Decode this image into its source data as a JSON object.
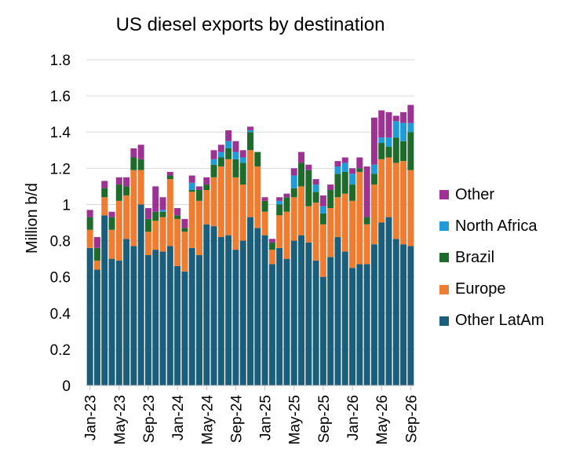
{
  "chart_data": {
    "type": "bar",
    "stacked": true,
    "title": "US diesel exports by destination",
    "xlabel": "",
    "ylabel": "Million b/d",
    "ylim": [
      0,
      1.8
    ],
    "yticks": [
      "0",
      "0.2",
      "0.4",
      "0.6",
      "0.8",
      "1",
      "1.2",
      "1.4",
      "1.6",
      "1.8"
    ],
    "xtick_labels": [
      "Jan-23",
      "May-23",
      "Sep-23",
      "Jan-24",
      "May-24",
      "Sep-24",
      "Jan-25",
      "May-25",
      "Sep-25",
      "Jan-26",
      "May-26",
      "Sep-26"
    ],
    "xtick_every": 4,
    "grid": "horizontal",
    "legend_position": "right",
    "categories": [
      "Jan-23",
      "Feb-23",
      "Mar-23",
      "Apr-23",
      "May-23",
      "Jun-23",
      "Jul-23",
      "Aug-23",
      "Sep-23",
      "Oct-23",
      "Nov-23",
      "Dec-23",
      "Jan-24",
      "Feb-24",
      "Mar-24",
      "Apr-24",
      "May-24",
      "Jun-24",
      "Jul-24",
      "Aug-24",
      "Sep-24",
      "Oct-24",
      "Nov-24",
      "Dec-24",
      "Jan-25",
      "Feb-25",
      "Mar-25",
      "Apr-25",
      "May-25",
      "Jun-25",
      "Jul-25",
      "Aug-25",
      "Sep-25",
      "Oct-25",
      "Nov-25",
      "Dec-25",
      "Jan-26",
      "Feb-26",
      "Mar-26",
      "Apr-26",
      "May-26",
      "Jun-26",
      "Jul-26",
      "Aug-26",
      "Sep-26"
    ],
    "series": [
      {
        "name": "Other LatAm",
        "color": "#1b5e7b",
        "values": [
          0.76,
          0.64,
          0.94,
          0.7,
          0.69,
          0.81,
          0.77,
          1.0,
          0.72,
          0.75,
          0.74,
          0.77,
          0.66,
          0.63,
          0.76,
          0.72,
          0.89,
          0.88,
          0.82,
          0.83,
          0.75,
          0.8,
          0.93,
          0.87,
          0.83,
          0.67,
          0.76,
          0.7,
          0.8,
          0.83,
          0.79,
          0.69,
          0.6,
          0.71,
          0.82,
          0.74,
          0.65,
          0.67,
          0.67,
          0.78,
          0.9,
          0.93,
          0.81,
          0.78,
          0.77
        ]
      },
      {
        "name": "Europe",
        "color": "#ee7d31",
        "values": [
          0.1,
          0.05,
          0.1,
          0.16,
          0.33,
          0.24,
          0.42,
          0.19,
          0.13,
          0.16,
          0.19,
          0.37,
          0.26,
          0.22,
          0.31,
          0.3,
          0.19,
          0.27,
          0.39,
          0.42,
          0.4,
          0.31,
          0.37,
          0.34,
          0.13,
          0.08,
          0.18,
          0.26,
          0.24,
          0.27,
          0.2,
          0.32,
          0.29,
          0.27,
          0.22,
          0.32,
          0.37,
          0.51,
          0.22,
          0.33,
          0.35,
          0.33,
          0.42,
          0.46,
          0.42
        ]
      },
      {
        "name": "Brazil",
        "color": "#1e6b2b",
        "values": [
          0.07,
          0.07,
          0.05,
          0.07,
          0.09,
          0.05,
          0.07,
          0.06,
          0.07,
          0.05,
          0.03,
          0.02,
          0.02,
          0.02,
          0.01,
          0.06,
          0.03,
          0.07,
          0.05,
          0.06,
          0.1,
          0.12,
          0.1,
          0.08,
          0.06,
          0.04,
          0.06,
          0.08,
          0.05,
          0.13,
          0.2,
          0.06,
          0.06,
          0.1,
          0.13,
          0.12,
          0.09,
          0.02,
          0.04,
          0.06,
          0.09,
          0.06,
          0.14,
          0.11,
          0.21
        ]
      },
      {
        "name": "North Africa",
        "color": "#1f9cd7",
        "values": [
          0,
          0,
          0,
          0,
          0,
          0,
          0,
          0,
          0,
          0,
          0.01,
          0,
          0,
          0,
          0.04,
          0,
          0,
          0.03,
          0.03,
          0.04,
          0.04,
          0.03,
          0.01,
          0,
          0,
          0,
          0.02,
          0,
          0.07,
          0,
          0,
          0.04,
          0.04,
          0,
          0.04,
          0.05,
          0.06,
          0,
          0,
          0.05,
          0.03,
          0.05,
          0.09,
          0.1,
          0.05
        ]
      },
      {
        "name": "Other",
        "color": "#9c3393",
        "values": [
          0.04,
          0.06,
          0.04,
          0.03,
          0.04,
          0.05,
          0.05,
          0.08,
          0.06,
          0.14,
          0.07,
          0.02,
          0.04,
          0.05,
          0.04,
          0.02,
          0.04,
          0.05,
          0.04,
          0.06,
          0.06,
          0.04,
          0.02,
          0,
          0.02,
          0.02,
          0.02,
          0.02,
          0.04,
          0.06,
          0.03,
          0.03,
          0.06,
          0.03,
          0.03,
          0.03,
          0.03,
          0.06,
          0.28,
          0.26,
          0.15,
          0.14,
          0.03,
          0.06,
          0.1
        ]
      }
    ]
  }
}
